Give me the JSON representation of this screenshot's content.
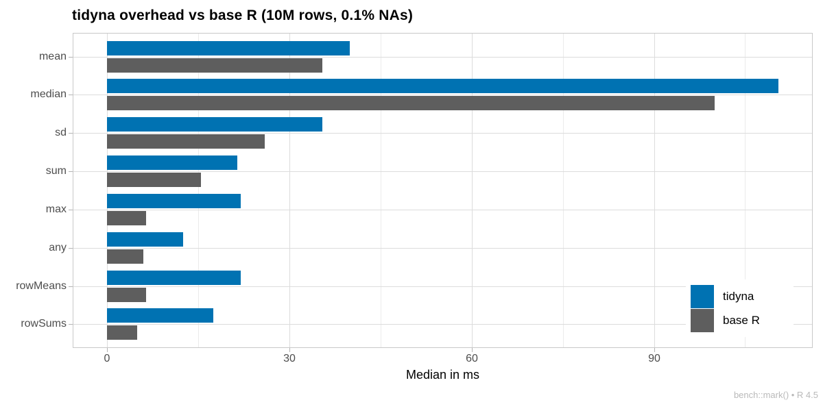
{
  "title": "tidyna overhead vs base R (10M rows, 0.1% NAs)",
  "caption": "bench::mark() • R 4.5",
  "chart_data": {
    "type": "bar",
    "orientation": "horizontal",
    "title": "tidyna overhead vs base R (10M rows, 0.1% NAs)",
    "xlabel": "Median in ms",
    "caption": "bench::mark() • R 4.5",
    "categories": [
      "mean",
      "median",
      "sd",
      "sum",
      "max",
      "any",
      "rowMeans",
      "rowSums"
    ],
    "series": [
      {
        "name": "tidyna",
        "color": "#0072B2",
        "values": [
          40,
          110.5,
          35.5,
          21.5,
          22,
          12.5,
          22,
          17.5
        ]
      },
      {
        "name": "base R",
        "color": "#5e5e5e",
        "values": [
          35.5,
          100,
          26,
          15.5,
          6.5,
          6,
          6.5,
          5
        ]
      }
    ],
    "xlim": [
      -5.5,
      116
    ],
    "x_ticks": [
      0,
      30,
      60,
      90
    ],
    "x_minor_ticks": [
      15,
      45,
      75,
      105
    ],
    "grid": true,
    "legend_position": "inside-right",
    "units": "ms"
  },
  "colors": {
    "tidyna": "#0072B2",
    "base_r": "#5e5e5e",
    "panel_border": "#c8c8c8",
    "grid_major": "#dcdcdc",
    "grid_minor": "#ebebeb",
    "axis_text": "#4d4d4d",
    "tick_mark": "#b3b3b3",
    "caption_text": "#b9b9b9"
  }
}
